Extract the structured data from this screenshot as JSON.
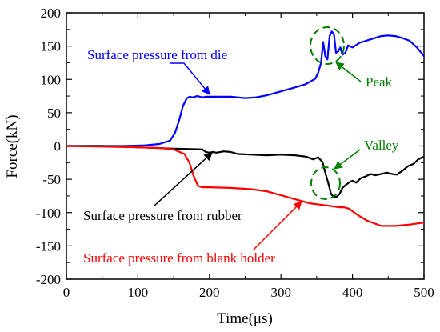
{
  "chart_data": {
    "type": "line",
    "title": "",
    "xlabel": "Time(μs)",
    "ylabel": "Force(kN)",
    "xlim": [
      0,
      500
    ],
    "ylim": [
      -200,
      200
    ],
    "xticks": [
      0,
      100,
      200,
      300,
      400,
      500
    ],
    "yticks": [
      -200,
      -150,
      -100,
      -50,
      0,
      50,
      100,
      150,
      200
    ],
    "grid": false,
    "series": [
      {
        "name": "Surface pressure from die",
        "color": "#0000ff",
        "x": [
          0,
          40,
          80,
          110,
          130,
          145,
          152,
          158,
          163,
          168,
          172,
          177,
          183,
          190,
          196,
          200,
          215,
          230,
          250,
          265,
          280,
          300,
          320,
          335,
          348,
          352,
          356,
          359,
          362,
          365,
          368,
          371,
          374,
          377,
          380,
          383,
          386,
          390,
          394,
          400,
          410,
          425,
          440,
          450,
          460,
          470,
          480,
          490,
          500
        ],
        "y": [
          0,
          0,
          0,
          1,
          3,
          8,
          20,
          40,
          60,
          71,
          74,
          73,
          75,
          73,
          74,
          74,
          74,
          74,
          72,
          73,
          76,
          82,
          88,
          93,
          101,
          110,
          125,
          156,
          135,
          130,
          165,
          172,
          168,
          140,
          142,
          148,
          137,
          140,
          151,
          148,
          155,
          160,
          165,
          166,
          165,
          162,
          158,
          148,
          135
        ]
      },
      {
        "name": "Surface pressure from rubber",
        "color": "#000000",
        "x": [
          0,
          50,
          100,
          150,
          190,
          195,
          200,
          205,
          210,
          220,
          230,
          240,
          260,
          280,
          300,
          320,
          335,
          345,
          352,
          358,
          362,
          366,
          370,
          374,
          378,
          382,
          386,
          390,
          395,
          400,
          405,
          412,
          418,
          425,
          432,
          440,
          448,
          455,
          462,
          470,
          478,
          485,
          492,
          500
        ],
        "y": [
          0,
          0,
          -2,
          -4,
          -5,
          -9,
          -10,
          -9,
          -10,
          -8,
          -9,
          -12,
          -13,
          -14,
          -13,
          -14,
          -16,
          -20,
          -17,
          -24,
          -40,
          -55,
          -72,
          -77,
          -76,
          -72,
          -63,
          -59,
          -55,
          -52,
          -55,
          -48,
          -46,
          -42,
          -44,
          -42,
          -40,
          -42,
          -43,
          -37,
          -30,
          -27,
          -20,
          -16
        ]
      },
      {
        "name": "Surface pressure from blank holder",
        "color": "#ff0000",
        "x": [
          0,
          50,
          100,
          130,
          150,
          165,
          172,
          178,
          184,
          190,
          200,
          230,
          260,
          280,
          300,
          320,
          340,
          355,
          368,
          375,
          382,
          388,
          395,
          405,
          420,
          440,
          460,
          480,
          500
        ],
        "y": [
          0,
          -1,
          -2,
          -3,
          -5,
          -12,
          -25,
          -45,
          -60,
          -62,
          -62,
          -63,
          -65,
          -68,
          -74,
          -80,
          -86,
          -88,
          -90,
          -91,
          -92,
          -92,
          -94,
          -102,
          -112,
          -120,
          -120,
          -118,
          -115
        ]
      }
    ],
    "annotations": [
      {
        "text": "Surface pressure from die",
        "color": "#0000ff"
      },
      {
        "text": "Peak",
        "color": "#008000"
      },
      {
        "text": "Valley",
        "color": "#008000"
      },
      {
        "text": "Surface pressure from rubber",
        "color": "#000000"
      },
      {
        "text": "Surface pressure from blank holder",
        "color": "#ff0000"
      }
    ]
  }
}
